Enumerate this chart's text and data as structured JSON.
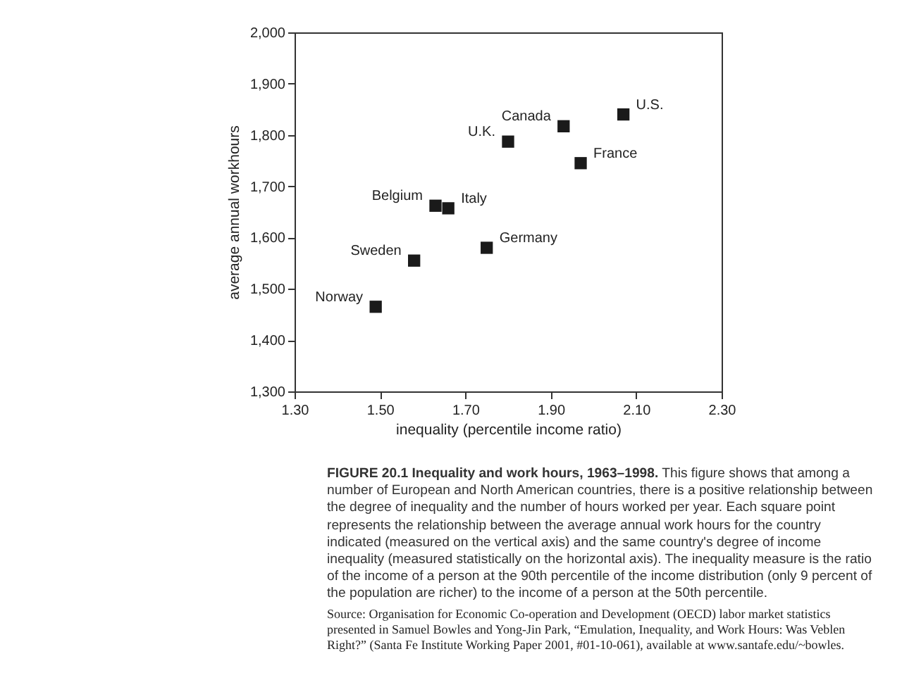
{
  "chart_data": {
    "type": "scatter",
    "title": "FIGURE 20.1 Inequality and work hours, 1963–1998.",
    "subtitle": "This figure shows that among a number of European and North American countries, there is a positive relationship between the degree of inequality and the number of hours worked per year. Each square point represents the relationship between the average annual work hours for the country indicated (measured on the vertical axis) and the same country's degree of income inequality (measured statistically on the horizontal axis). The inequality measure is the ratio of the income of a person at the 90th percentile of the income distribution (only 9 percent of the population are richer) to the income of a person at the 50th percentile.",
    "annotations": [
      "Source: Organisation for Economic Co-operation and Development (OECD) labor market statistics presented in Samuel Bowles and Yong-Jin Park, “Emulation, Inequality, and Work Hours: Was Veblen Right?” (Santa Fe Institute Working Paper 2001, #01-10-061), available at www.santafe.edu/~bowles."
    ],
    "xlabel": "inequality (percentile income ratio)",
    "ylabel": "average annual workhours",
    "xlim": [
      1.3,
      2.3
    ],
    "xticks": [
      {
        "value": 1.3,
        "label": "1.30"
      },
      {
        "value": 1.5,
        "label": "1.50"
      },
      {
        "value": 1.7,
        "label": "1.70"
      },
      {
        "value": 1.9,
        "label": "1.90"
      },
      {
        "value": 2.1,
        "label": "2.10"
      },
      {
        "value": 2.3,
        "label": "2.30"
      }
    ],
    "ylim": [
      1300,
      2000
    ],
    "yticks": [
      {
        "value": 1300,
        "label": "1,300"
      },
      {
        "value": 1400,
        "label": "1,400"
      },
      {
        "value": 1500,
        "label": "1,500"
      },
      {
        "value": 1600,
        "label": "1,600"
      },
      {
        "value": 1700,
        "label": "1,700"
      },
      {
        "value": 1800,
        "label": "1,800"
      },
      {
        "value": 1900,
        "label": "1,900"
      },
      {
        "value": 2000,
        "label": "2,000"
      }
    ],
    "marker": "square",
    "grid": false,
    "legend": false,
    "series": [
      {
        "name": "Norway",
        "color": "#1a1a1a",
        "x": [
          1.49
        ],
        "values": [
          1465
        ]
      },
      {
        "name": "Sweden",
        "color": "#1a1a1a",
        "x": [
          1.58
        ],
        "values": [
          1555
        ]
      },
      {
        "name": "Belgium",
        "color": "#1a1a1a",
        "x": [
          1.63
        ],
        "values": [
          1662
        ]
      },
      {
        "name": "Italy",
        "color": "#1a1a1a",
        "x": [
          1.66
        ],
        "values": [
          1657
        ]
      },
      {
        "name": "Germany",
        "color": "#1a1a1a",
        "x": [
          1.75
        ],
        "values": [
          1580
        ]
      },
      {
        "name": "U.K.",
        "color": "#1a1a1a",
        "x": [
          1.8
        ],
        "values": [
          1787
        ]
      },
      {
        "name": "Canada",
        "color": "#1a1a1a",
        "x": [
          1.93
        ],
        "values": [
          1817
        ]
      },
      {
        "name": "France",
        "color": "#1a1a1a",
        "x": [
          1.97
        ],
        "values": [
          1745
        ]
      },
      {
        "name": "U.S.",
        "color": "#1a1a1a",
        "x": [
          2.07
        ],
        "values": [
          1840
        ]
      }
    ]
  }
}
